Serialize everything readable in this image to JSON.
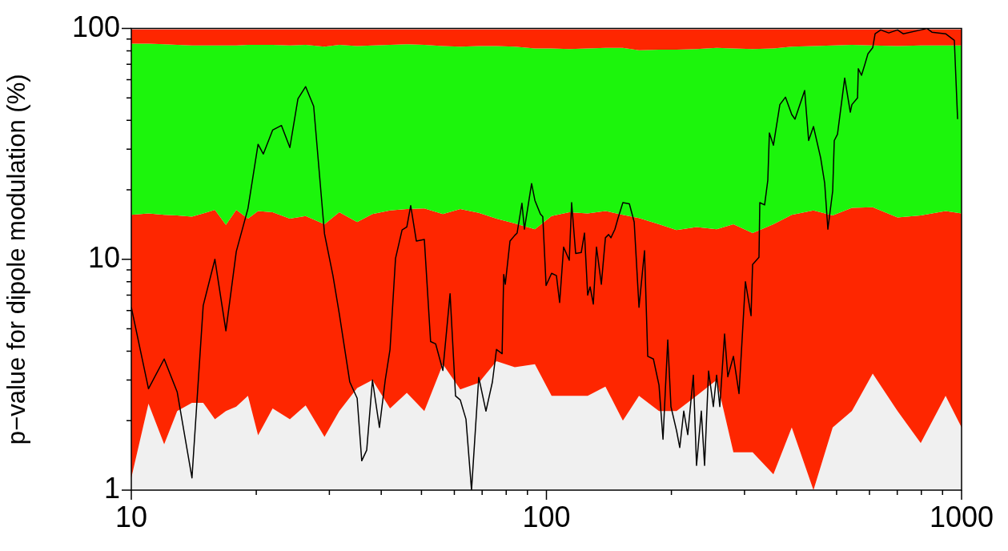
{
  "chart_data": {
    "type": "area",
    "stacked": true,
    "ylabel": "p−value for dipole modulation (%)",
    "log": "xy",
    "grid": false,
    "legend": false,
    "marker": "none",
    "line_style": "solid",
    "xlim": [
      10,
      1000
    ],
    "ylim": [
      1,
      100
    ],
    "xticks": [
      10,
      {
        "value": 20,
        "label": null
      },
      {
        "value": 30,
        "label": null
      },
      {
        "value": 40,
        "label": null
      },
      {
        "value": 50,
        "label": null
      },
      {
        "value": 60,
        "label": null
      },
      {
        "value": 70,
        "label": null
      },
      {
        "value": 80,
        "label": null
      },
      {
        "value": 90,
        "label": null
      },
      100,
      {
        "value": 200,
        "label": null
      },
      {
        "value": 300,
        "label": null
      },
      {
        "value": 400,
        "label": null
      },
      {
        "value": 500,
        "label": null
      },
      {
        "value": 600,
        "label": null
      },
      {
        "value": 700,
        "label": null
      },
      {
        "value": 800,
        "label": null
      },
      {
        "value": 900,
        "label": null
      },
      1000
    ],
    "yticks": [
      1,
      {
        "value": 2,
        "label": null
      },
      {
        "value": 3,
        "label": null
      },
      {
        "value": 4,
        "label": null
      },
      {
        "value": 5,
        "label": null
      },
      {
        "value": 6,
        "label": null
      },
      {
        "value": 7,
        "label": null
      },
      {
        "value": 8,
        "label": null
      },
      {
        "value": 9,
        "label": null
      },
      10,
      {
        "value": 20,
        "label": null
      },
      {
        "value": 30,
        "label": null
      },
      {
        "value": 40,
        "label": null
      },
      {
        "value": 50,
        "label": null
      },
      {
        "value": 60,
        "label": null
      },
      {
        "value": 70,
        "label": null
      },
      {
        "value": 80,
        "label": null
      },
      {
        "value": 90,
        "label": null
      },
      100
    ],
    "x": [
      10,
      11.0,
      12.0,
      12.9,
      14.0,
      14.9,
      15.9,
      16.9,
      17.9,
      19.1,
      20.2,
      21.9,
      24.1,
      26.3,
      29.2,
      31.7,
      35.0,
      38.1,
      42.0,
      46.1,
      50.8,
      56.3,
      62.0,
      68.7,
      75.8,
      83.9,
      93.8,
      102.9,
      113.5,
      125.7,
      138.7,
      152.8,
      167.1,
      186.7,
      205.8,
      229.9,
      257.0,
      282.1,
      313.8,
      352.2,
      389.9,
      439.8,
      489.3,
      544.3,
      610.9,
      701.1,
      797.3,
      915.3,
      1000
    ],
    "series": [
      {
        "color": "#f0f0f0",
        "values": [
          1.13,
          2.37,
          1.58,
          2.2,
          2.39,
          2.39,
          2.03,
          2.2,
          2.3,
          2.56,
          1.73,
          2.26,
          2.03,
          2.33,
          1.7,
          2.2,
          2.77,
          3.0,
          2.26,
          2.64,
          2.2,
          3.51,
          2.73,
          2.92,
          3.62,
          3.41,
          3.51,
          2.56,
          2.56,
          2.56,
          2.81,
          2.0,
          2.56,
          2.2,
          2.2,
          2.56,
          3.0,
          1.46,
          1.46,
          1.17,
          1.87,
          1.0,
          1.87,
          2.2,
          3.2,
          2.2,
          1.6,
          2.56,
          1.87
        ]
      },
      {
        "color": "#fe2600",
        "values": [
          14.47,
          13.43,
          14.02,
          13.3,
          12.91,
          13.41,
          14.37,
          11.9,
          14.1,
          12.44,
          14.47,
          13.74,
          12.97,
          13.07,
          12.5,
          13.8,
          11.73,
          12.7,
          14.04,
          13.86,
          14.4,
          12.19,
          13.77,
          12.98,
          11.38,
          10.89,
          9.99,
          12.84,
          13.44,
          13.24,
          13.39,
          13.6,
          12.54,
          12,
          11.2,
          11.24,
          10.5,
          12.74,
          11.54,
          13.03,
          13.73,
          15.3,
          13.63,
          14.5,
          13.6,
          13,
          13.9,
          13.64,
          13.93
        ]
      },
      {
        "color": "#1cf50c",
        "values": [
          70.4,
          70.2,
          69.9,
          69.5,
          69.2,
          68.7,
          68.1,
          70.4,
          68.1,
          70,
          68.8,
          69,
          69.5,
          69.6,
          69.3,
          69,
          69.5,
          68.8,
          68.7,
          69,
          68.4,
          68.3,
          67,
          68.1,
          69,
          69.2,
          68.5,
          66.6,
          65.5,
          66.2,
          66.3,
          66.9,
          65.4,
          66.8,
          67.6,
          67.7,
          69,
          67.8,
          68.5,
          67.8,
          67.9,
          67.7,
          69,
          68.3,
          67.7,
          68.8,
          69,
          68.3,
          68.7
        ]
      },
      {
        "color": "#fe2600",
        "values": [
          13,
          13,
          13.5,
          14,
          14.5,
          14.5,
          14.5,
          14.5,
          14.5,
          14,
          14,
          14,
          14.5,
          14,
          15.5,
          14,
          15,
          14.5,
          14,
          13.5,
          14,
          15,
          15.5,
          15,
          15,
          15.5,
          17,
          17,
          17.5,
          17,
          16.5,
          16.5,
          18.5,
          18,
          18,
          17.5,
          16.5,
          17,
          17.5,
          17,
          15.5,
          15,
          14.5,
          14,
          14.5,
          15,
          14.5,
          14.5,
          14.5
        ]
      },
      {
        "type": "line",
        "color": "#000000",
        "x": [
          10,
          11.0,
          12.0,
          12.9,
          14.0,
          14.9,
          15.9,
          16.9,
          17.9,
          19.1,
          20.2,
          20.8,
          21.9,
          23.0,
          24.1,
          25.2,
          26.3,
          27.5,
          29.2,
          30.6,
          31.7,
          33.6,
          35.0,
          35.9,
          36.9,
          38.1,
          39.6,
          40.9,
          42.0,
          43.3,
          44.9,
          46.1,
          47.1,
          48.6,
          50.8,
          52.6,
          54.1,
          56.3,
          58.6,
          60.4,
          62.0,
          64.0,
          66.0,
          68.7,
          71.5,
          74.1,
          75.8,
          78.2,
          78.9,
          79.6,
          81.7,
          83.9,
          85.0,
          87.3,
          88.5,
          92.1,
          93.8,
          96.7,
          98.0,
          99.8,
          102.9,
          105.7,
          107.6,
          110.0,
          113.5,
          115.0,
          117.6,
          121.3,
          123.5,
          125.7,
          127.4,
          129.7,
          132.0,
          135.6,
          138.7,
          141.2,
          143.0,
          146.2,
          148.8,
          152.8,
          158.4,
          162.7,
          167.1,
          172.3,
          175.4,
          181.0,
          186.7,
          190.9,
          196.0,
          199.5,
          205.8,
          209.5,
          214.2,
          219.0,
          225.9,
          229.9,
          236.1,
          240.4,
          245.8,
          252.4,
          257.0,
          261.6,
          268.6,
          273.5,
          282.1,
          291.0,
          301.5,
          311.1,
          313.8,
          325.1,
          326.6,
          335.4,
          341.4,
          344.4,
          352.2,
          365.0,
          376.5,
          389.9,
          397.0,
          418.8,
          428.2,
          439.8,
          457.7,
          468.0,
          476.4,
          489.3,
          493.6,
          502.5,
          523.0,
          539.5,
          544.3,
          561.5,
          564.0,
          574.1,
          584.4,
          594.9,
          610.9,
          619.1,
          638.7,
          667.7,
          701.1,
          723.2,
          797.3,
          826.3,
          848.5,
          915.3,
          960.7,
          978.2
        ],
        "values": [
          6.2,
          2.75,
          3.7,
          2.66,
          1.13,
          6.3,
          10,
          4.9,
          10.8,
          16.6,
          31.5,
          28.6,
          36.3,
          38,
          30.5,
          49.6,
          56,
          46,
          12.9,
          8.5,
          5.8,
          2.94,
          2.5,
          1.34,
          1.49,
          3.0,
          1.87,
          3.0,
          4.07,
          10.1,
          13.4,
          13.8,
          17.1,
          12,
          12.2,
          4.4,
          4.3,
          3.3,
          7.1,
          2.56,
          2.46,
          2.03,
          1.0,
          3.08,
          2.2,
          2.94,
          4.07,
          3.9,
          8.6,
          7.8,
          12,
          12.7,
          13,
          17.5,
          13.5,
          21.3,
          18,
          15.7,
          15.3,
          7.7,
          8.7,
          8.5,
          6.5,
          11.3,
          9.9,
          17.6,
          10.6,
          10.7,
          13,
          7,
          7.6,
          6.4,
          11.3,
          7.8,
          12.4,
          12.8,
          12.4,
          13.5,
          15.1,
          17.6,
          17.4,
          14.5,
          6.2,
          10.9,
          3.8,
          3.7,
          2.85,
          1.66,
          4.47,
          2.3,
          1.81,
          1.53,
          2.2,
          1.74,
          3.15,
          1.28,
          2.2,
          1.28,
          3.28,
          2.3,
          3.15,
          2.3,
          4.75,
          3.1,
          3.8,
          2.62,
          8,
          5.7,
          9.5,
          10.2,
          17.6,
          17.2,
          22,
          35.3,
          31.2,
          46.8,
          50.4,
          42.4,
          40.5,
          53.9,
          32.7,
          37.6,
          27.5,
          21.4,
          13.5,
          19.8,
          32.7,
          34.8,
          61,
          43.4,
          46.8,
          50,
          67,
          62.7,
          69.6,
          77.7,
          82.6,
          94.9,
          98.6,
          95.7,
          98.6,
          94.9,
          98.6,
          100,
          96.4,
          94.9,
          88.9,
          40.5
        ]
      }
    ]
  }
}
